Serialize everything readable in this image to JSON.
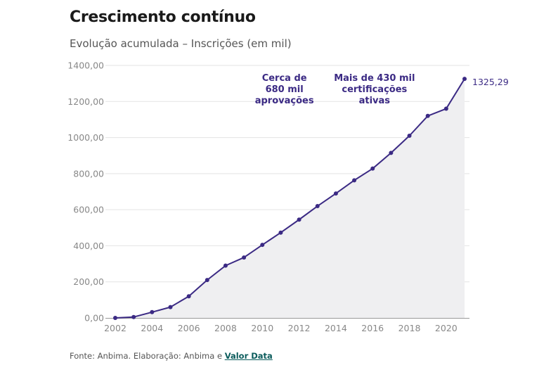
{
  "header": {
    "title": "Crescimento contínuo",
    "subtitle": "Evolução acumulada – Inscrições (em mil)"
  },
  "footer": {
    "source_text": "Fonte: Anbima. Elaboração: Anbima e ",
    "source_link": "Valor Data"
  },
  "colors": {
    "line": "#3b2a84",
    "area": "#efeff1",
    "grid": "#e3e3e3",
    "tick": "#888888"
  },
  "chart_data": {
    "type": "area",
    "x": [
      2002,
      2003,
      2004,
      2005,
      2006,
      2007,
      2008,
      2009,
      2010,
      2011,
      2012,
      2013,
      2014,
      2015,
      2016,
      2017,
      2018,
      2019,
      2020,
      2021
    ],
    "values": [
      0,
      5,
      32,
      60,
      120,
      210,
      290,
      335,
      405,
      473,
      545,
      620,
      690,
      763,
      828,
      915,
      1010,
      1120,
      1160,
      1325.29
    ],
    "xlim": [
      2002,
      2021
    ],
    "ylim": [
      0,
      1400
    ],
    "yticks": [
      "0,00",
      "200,00",
      "400,00",
      "600,00",
      "800,00",
      "1000,00",
      "1200,00",
      "1400,00"
    ],
    "ytick_values": [
      0,
      200,
      400,
      600,
      800,
      1000,
      1200,
      1400
    ],
    "xticks": [
      "2002",
      "2004",
      "2006",
      "2008",
      "2010",
      "2012",
      "2014",
      "2016",
      "2018",
      "2020"
    ],
    "xtick_values": [
      2002,
      2004,
      2006,
      2008,
      2010,
      2012,
      2014,
      2016,
      2018,
      2020
    ],
    "grid": true,
    "end_label": "1325,29",
    "annotations": [
      {
        "lines": [
          "Cerca de",
          "680 mil",
          "aprovações"
        ],
        "x": 2011.2
      },
      {
        "lines": [
          "Mais de 430 mil",
          "certificações",
          "ativas"
        ],
        "x": 2016.1
      }
    ]
  }
}
